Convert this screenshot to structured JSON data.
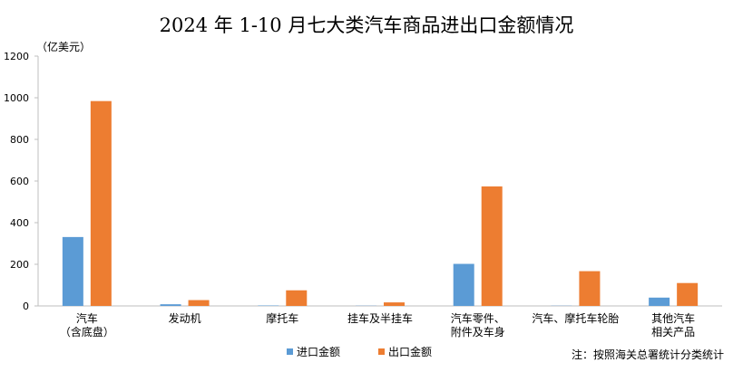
{
  "chart_data": {
    "type": "bar",
    "title": "2024 年 1-10 月七大类汽车商品进出口金额情况",
    "unit": "（亿美元）",
    "categories": [
      [
        "汽车",
        "（含底盘）"
      ],
      [
        "发动机"
      ],
      [
        "摩托车"
      ],
      [
        "挂车及半挂车"
      ],
      [
        "汽车零件、",
        "附件及车身"
      ],
      [
        "汽车、摩托车轮胎"
      ],
      [
        "其他汽车",
        "相关产品"
      ]
    ],
    "series": [
      {
        "name": "进口金额",
        "color": "#5B9BD5",
        "values": [
          331,
          8,
          2,
          1,
          202,
          1,
          40
        ]
      },
      {
        "name": "出口金额",
        "color": "#ED7D31",
        "values": [
          984,
          28,
          75,
          17,
          574,
          167,
          110
        ]
      }
    ],
    "ylim": [
      0,
      1200
    ],
    "yticks": [
      0,
      200,
      400,
      600,
      800,
      1000,
      1200
    ],
    "grid": false,
    "legend_position": "bottom"
  },
  "note": "注：按照海关总署统计分类统计"
}
